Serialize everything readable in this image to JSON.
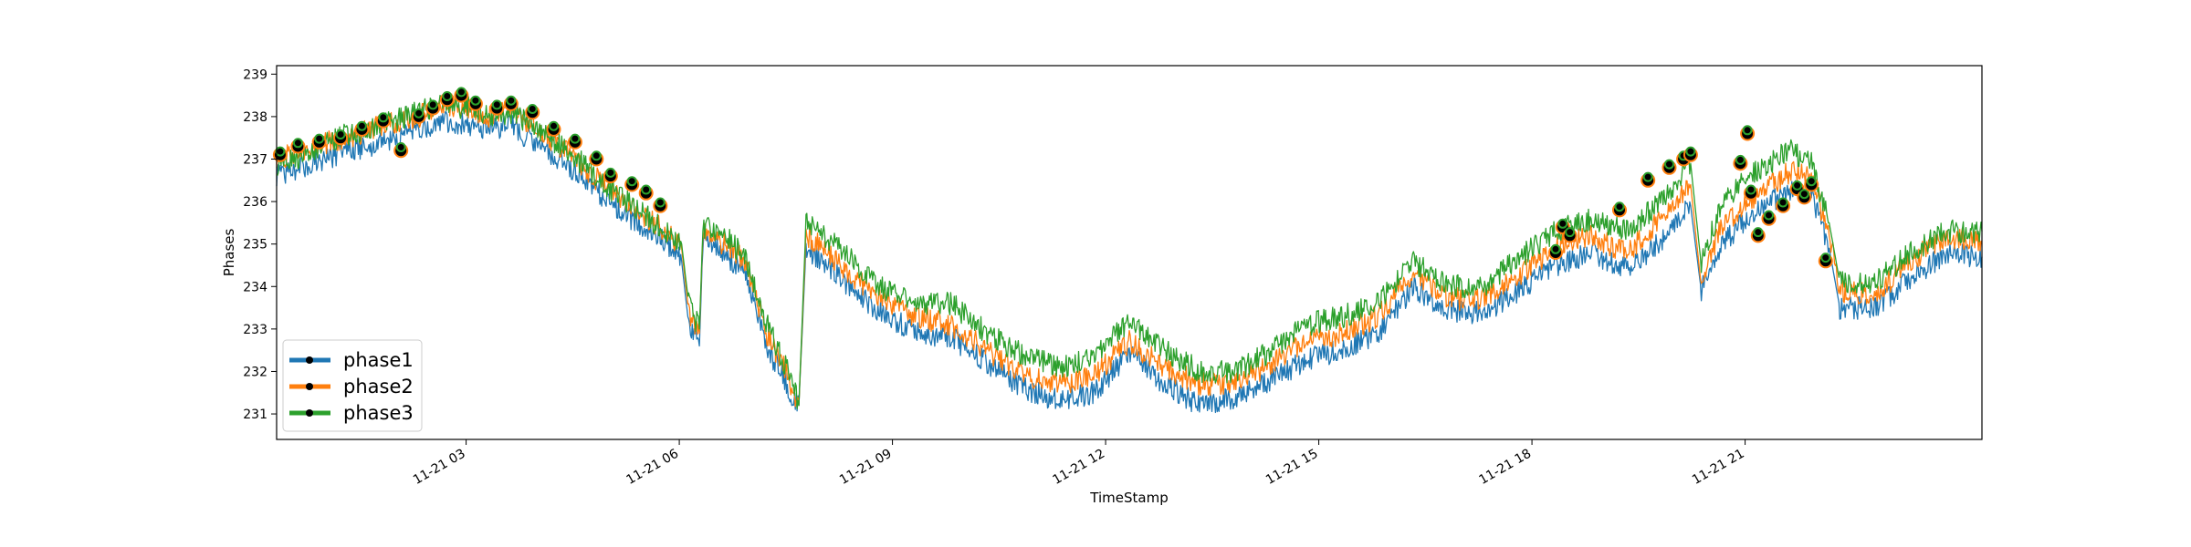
{
  "chart_data": {
    "type": "line",
    "title": "",
    "xlabel": "TimeStamp",
    "ylabel": "Phases",
    "xlim": [
      "2023-11-21 00:00",
      "2023-11-22 00:00"
    ],
    "ylim": [
      230.4,
      239.2
    ],
    "yticks": [
      231,
      232,
      233,
      234,
      235,
      236,
      237,
      238,
      239
    ],
    "xticks": [
      {
        "t": 2.667,
        "label": "11-21 03"
      },
      {
        "t": 5.667,
        "label": "11-21 06"
      },
      {
        "t": 8.667,
        "label": "11-21 09"
      },
      {
        "t": 11.667,
        "label": "11-21 12"
      },
      {
        "t": 14.667,
        "label": "11-21 15"
      },
      {
        "t": 17.667,
        "label": "11-21 18"
      },
      {
        "t": 20.667,
        "label": "11-21 21"
      }
    ],
    "x_hours_range": [
      0,
      24
    ],
    "grid": false,
    "legend_position": "lower-left",
    "series": [
      {
        "name": "phase1",
        "color": "#1f77b4",
        "points": [
          [
            0,
            236.6
          ],
          [
            0.5,
            236.9
          ],
          [
            1,
            237.2
          ],
          [
            1.5,
            237.4
          ],
          [
            2,
            237.7
          ],
          [
            2.3,
            237.9
          ],
          [
            2.7,
            237.8
          ],
          [
            3,
            237.7
          ],
          [
            3.3,
            237.8
          ],
          [
            3.6,
            237.4
          ],
          [
            4,
            237
          ],
          [
            4.3,
            236.6
          ],
          [
            4.6,
            236.1
          ],
          [
            5,
            235.6
          ],
          [
            5.4,
            235.2
          ],
          [
            5.7,
            234.6
          ],
          [
            5.8,
            233.1
          ],
          [
            5.95,
            232.6
          ],
          [
            6,
            235.1
          ],
          [
            6.3,
            234.8
          ],
          [
            6.6,
            234.3
          ],
          [
            6.9,
            232.6
          ],
          [
            7.2,
            231.6
          ],
          [
            7.35,
            231.2
          ],
          [
            7.45,
            234.9
          ],
          [
            7.7,
            234.6
          ],
          [
            8,
            234.1
          ],
          [
            8.5,
            233.4
          ],
          [
            9,
            232.9
          ],
          [
            9.5,
            232.8
          ],
          [
            10,
            232.2
          ],
          [
            10.5,
            231.6
          ],
          [
            11,
            231.3
          ],
          [
            11.5,
            231.5
          ],
          [
            12,
            232.4
          ],
          [
            12.5,
            231.7
          ],
          [
            13,
            231.2
          ],
          [
            13.5,
            231.4
          ],
          [
            14,
            231.8
          ],
          [
            14.5,
            232.3
          ],
          [
            15,
            232.5
          ],
          [
            15.5,
            232.9
          ],
          [
            16,
            234
          ],
          [
            16.5,
            233.4
          ],
          [
            17,
            233.4
          ],
          [
            17.5,
            233.9
          ],
          [
            18,
            234.5
          ],
          [
            18.5,
            234.8
          ],
          [
            19,
            234.4
          ],
          [
            19.5,
            235.1
          ],
          [
            19.9,
            235.9
          ],
          [
            20.05,
            233.9
          ],
          [
            20.3,
            234.9
          ],
          [
            20.7,
            235.6
          ],
          [
            21.3,
            236.3
          ],
          [
            21.6,
            236.2
          ],
          [
            21.85,
            234.9
          ],
          [
            22,
            233.5
          ],
          [
            22.5,
            233.5
          ],
          [
            23,
            234.2
          ],
          [
            23.5,
            234.8
          ],
          [
            24,
            234.7
          ]
        ]
      },
      {
        "name": "phase2",
        "color": "#ff7f0e",
        "points": [
          [
            0,
            237
          ],
          [
            0.5,
            237.3
          ],
          [
            1,
            237.5
          ],
          [
            1.5,
            237.8
          ],
          [
            2,
            238
          ],
          [
            2.3,
            238.3
          ],
          [
            2.7,
            238.2
          ],
          [
            3,
            238
          ],
          [
            3.3,
            238.2
          ],
          [
            3.6,
            237.8
          ],
          [
            4,
            237.3
          ],
          [
            4.3,
            236.8
          ],
          [
            4.6,
            236.4
          ],
          [
            5,
            235.9
          ],
          [
            5.4,
            235.4
          ],
          [
            5.7,
            234.9
          ],
          [
            5.8,
            233.4
          ],
          [
            5.95,
            232.9
          ],
          [
            6,
            235.3
          ],
          [
            6.3,
            235
          ],
          [
            6.6,
            234.6
          ],
          [
            6.9,
            232.9
          ],
          [
            7.2,
            231.9
          ],
          [
            7.35,
            231.2
          ],
          [
            7.45,
            235.2
          ],
          [
            7.7,
            234.9
          ],
          [
            8,
            234.4
          ],
          [
            8.5,
            233.7
          ],
          [
            9,
            233.3
          ],
          [
            9.5,
            233.1
          ],
          [
            10,
            232.5
          ],
          [
            10.5,
            231.9
          ],
          [
            11,
            231.7
          ],
          [
            11.5,
            231.9
          ],
          [
            12,
            232.7
          ],
          [
            12.5,
            232.1
          ],
          [
            13,
            231.7
          ],
          [
            13.5,
            231.7
          ],
          [
            14,
            232.2
          ],
          [
            14.5,
            232.7
          ],
          [
            15,
            232.9
          ],
          [
            15.5,
            233.3
          ],
          [
            16,
            234.3
          ],
          [
            16.5,
            233.7
          ],
          [
            17,
            233.7
          ],
          [
            17.5,
            234.3
          ],
          [
            18,
            234.9
          ],
          [
            18.5,
            235.2
          ],
          [
            19,
            234.8
          ],
          [
            19.5,
            235.6
          ],
          [
            19.9,
            236.4
          ],
          [
            20.05,
            234
          ],
          [
            20.3,
            235.3
          ],
          [
            20.7,
            236
          ],
          [
            21.3,
            236.7
          ],
          [
            21.6,
            236.6
          ],
          [
            21.85,
            235.2
          ],
          [
            22,
            233.9
          ],
          [
            22.5,
            233.8
          ],
          [
            23,
            234.6
          ],
          [
            23.5,
            235.2
          ],
          [
            24,
            235
          ]
        ]
      },
      {
        "name": "phase3",
        "color": "#2ca02c",
        "points": [
          [
            0,
            236.8
          ],
          [
            0.5,
            237.2
          ],
          [
            1,
            237.6
          ],
          [
            1.5,
            237.8
          ],
          [
            2,
            238.1
          ],
          [
            2.3,
            238.3
          ],
          [
            2.7,
            238.2
          ],
          [
            3,
            238
          ],
          [
            3.3,
            238.1
          ],
          [
            3.6,
            237.8
          ],
          [
            4,
            237.3
          ],
          [
            4.3,
            236.9
          ],
          [
            4.6,
            236.4
          ],
          [
            5,
            235.9
          ],
          [
            5.4,
            235.4
          ],
          [
            5.7,
            235
          ],
          [
            5.8,
            233.6
          ],
          [
            5.95,
            233
          ],
          [
            6,
            235.4
          ],
          [
            6.3,
            235.2
          ],
          [
            6.6,
            234.7
          ],
          [
            6.9,
            233.1
          ],
          [
            7.2,
            232
          ],
          [
            7.35,
            231.2
          ],
          [
            7.45,
            235.5
          ],
          [
            7.7,
            235.2
          ],
          [
            8,
            234.8
          ],
          [
            8.5,
            234
          ],
          [
            9,
            233.6
          ],
          [
            9.5,
            233.6
          ],
          [
            10,
            232.9
          ],
          [
            10.5,
            232.4
          ],
          [
            11,
            232.1
          ],
          [
            11.5,
            232.3
          ],
          [
            12,
            233.2
          ],
          [
            12.5,
            232.5
          ],
          [
            13,
            232
          ],
          [
            13.5,
            232
          ],
          [
            14,
            232.5
          ],
          [
            14.5,
            233.1
          ],
          [
            15,
            233.3
          ],
          [
            15.5,
            233.6
          ],
          [
            16,
            234.6
          ],
          [
            16.5,
            234
          ],
          [
            17,
            234
          ],
          [
            17.5,
            234.7
          ],
          [
            18,
            235.3
          ],
          [
            18.5,
            235.6
          ],
          [
            19,
            235.3
          ],
          [
            19.5,
            236
          ],
          [
            19.9,
            236.9
          ],
          [
            20.05,
            234.5
          ],
          [
            20.3,
            235.8
          ],
          [
            20.7,
            236.6
          ],
          [
            21.3,
            237.2
          ],
          [
            21.6,
            236.9
          ],
          [
            21.85,
            235.5
          ],
          [
            22,
            234.1
          ],
          [
            22.5,
            234.1
          ],
          [
            23,
            234.8
          ],
          [
            23.5,
            235.3
          ],
          [
            24,
            235.3
          ]
        ]
      }
    ],
    "highlight_points": [
      [
        0.05,
        237.1
      ],
      [
        0.3,
        237.3
      ],
      [
        0.6,
        237.4
      ],
      [
        0.9,
        237.5
      ],
      [
        1.2,
        237.7
      ],
      [
        1.5,
        237.9
      ],
      [
        1.75,
        237.2
      ],
      [
        2,
        238
      ],
      [
        2.2,
        238.2
      ],
      [
        2.4,
        238.4
      ],
      [
        2.6,
        238.5
      ],
      [
        2.8,
        238.3
      ],
      [
        3.1,
        238.2
      ],
      [
        3.3,
        238.3
      ],
      [
        3.6,
        238.1
      ],
      [
        3.9,
        237.7
      ],
      [
        4.2,
        237.4
      ],
      [
        4.5,
        237
      ],
      [
        4.7,
        236.6
      ],
      [
        5,
        236.4
      ],
      [
        5.2,
        236.2
      ],
      [
        5.4,
        235.9
      ],
      [
        18,
        234.8
      ],
      [
        18.1,
        235.4
      ],
      [
        18.2,
        235.2
      ],
      [
        18.9,
        235.8
      ],
      [
        19.3,
        236.5
      ],
      [
        19.6,
        236.8
      ],
      [
        19.8,
        237
      ],
      [
        19.9,
        237.1
      ],
      [
        20.6,
        236.9
      ],
      [
        20.7,
        237.6
      ],
      [
        20.75,
        236.2
      ],
      [
        20.85,
        235.2
      ],
      [
        21,
        235.6
      ],
      [
        21.2,
        235.9
      ],
      [
        21.4,
        236.3
      ],
      [
        21.5,
        236.1
      ],
      [
        21.6,
        236.4
      ],
      [
        21.8,
        234.6
      ]
    ],
    "highlight_marker_color": "#000000"
  },
  "legend": {
    "items": [
      {
        "label": "phase1",
        "color": "#1f77b4"
      },
      {
        "label": "phase2",
        "color": "#ff7f0e"
      },
      {
        "label": "phase3",
        "color": "#2ca02c"
      }
    ]
  }
}
